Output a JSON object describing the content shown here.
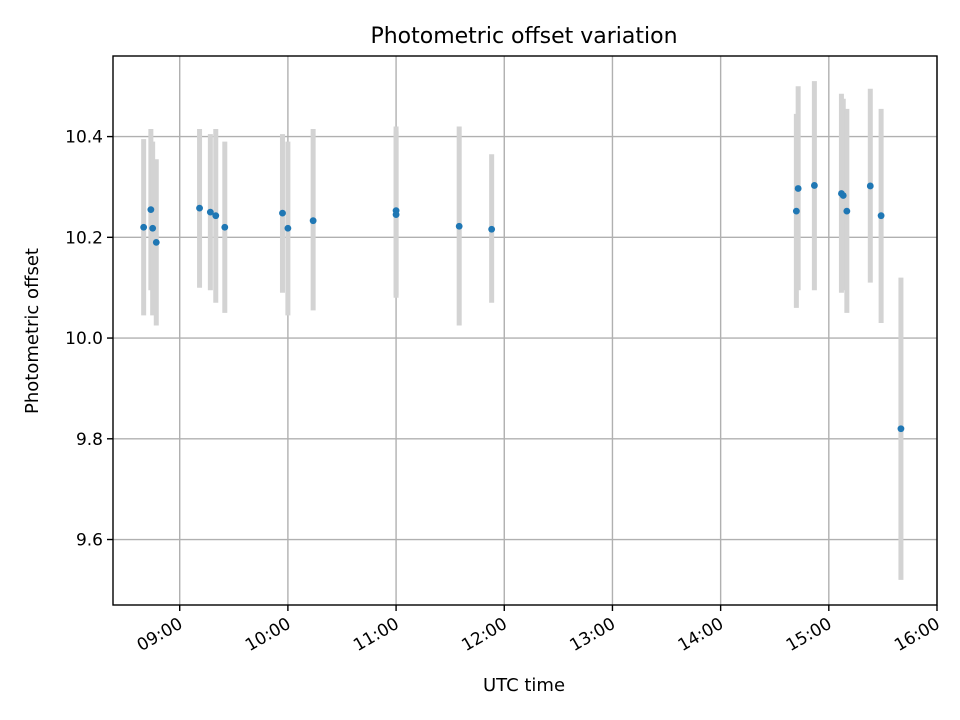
{
  "chart_data": {
    "type": "scatter",
    "title": "Photometric offset variation",
    "xlabel": "UTC time",
    "ylabel": "Photometric offset",
    "xlim": [
      "08:23",
      "16:00"
    ],
    "ylim": [
      9.47,
      10.56
    ],
    "grid": true,
    "x_ticks": [
      "09:00",
      "10:00",
      "11:00",
      "12:00",
      "13:00",
      "14:00",
      "15:00",
      "16:00"
    ],
    "y_ticks": [
      9.6,
      9.8,
      10.0,
      10.2,
      10.4
    ],
    "y_tick_labels": [
      "9.6",
      "9.8",
      "10.0",
      "10.2",
      "10.4"
    ],
    "colors": {
      "point": "#1f77b4",
      "errorbar": "#d3d3d3",
      "grid": "#b0b0b0"
    },
    "series": [
      {
        "points": [
          {
            "x": "08:40",
            "y": 10.22,
            "err_low": 10.045,
            "err_high": 10.395
          },
          {
            "x": "08:44",
            "y": 10.255,
            "err_low": 10.095,
            "err_high": 10.415
          },
          {
            "x": "08:45",
            "y": 10.218,
            "err_low": 10.045,
            "err_high": 10.39
          },
          {
            "x": "08:47",
            "y": 10.19,
            "err_low": 10.025,
            "err_high": 10.355
          },
          {
            "x": "09:11",
            "y": 10.258,
            "err_low": 10.1,
            "err_high": 10.415
          },
          {
            "x": "09:17",
            "y": 10.25,
            "err_low": 10.095,
            "err_high": 10.405
          },
          {
            "x": "09:20",
            "y": 10.243,
            "err_low": 10.07,
            "err_high": 10.415
          },
          {
            "x": "09:25",
            "y": 10.22,
            "err_low": 10.05,
            "err_high": 10.39
          },
          {
            "x": "09:57",
            "y": 10.248,
            "err_low": 10.09,
            "err_high": 10.405
          },
          {
            "x": "10:00",
            "y": 10.218,
            "err_low": 10.045,
            "err_high": 10.39
          },
          {
            "x": "10:14",
            "y": 10.233,
            "err_low": 10.055,
            "err_high": 10.415
          },
          {
            "x": "11:00",
            "y": 10.253,
            "err_low": 10.085,
            "err_high": 10.42
          },
          {
            "x": "11:00",
            "y": 10.245,
            "err_low": 10.08,
            "err_high": 10.41
          },
          {
            "x": "11:35",
            "y": 10.222,
            "err_low": 10.025,
            "err_high": 10.42
          },
          {
            "x": "11:53",
            "y": 10.216,
            "err_low": 10.07,
            "err_high": 10.365
          },
          {
            "x": "14:42",
            "y": 10.252,
            "err_low": 10.06,
            "err_high": 10.445
          },
          {
            "x": "14:43",
            "y": 10.297,
            "err_low": 10.095,
            "err_high": 10.5
          },
          {
            "x": "14:52",
            "y": 10.303,
            "err_low": 10.095,
            "err_high": 10.51
          },
          {
            "x": "15:07",
            "y": 10.287,
            "err_low": 10.09,
            "err_high": 10.485
          },
          {
            "x": "15:08",
            "y": 10.283,
            "err_low": 10.095,
            "err_high": 10.475
          },
          {
            "x": "15:10",
            "y": 10.252,
            "err_low": 10.05,
            "err_high": 10.455
          },
          {
            "x": "15:23",
            "y": 10.302,
            "err_low": 10.11,
            "err_high": 10.495
          },
          {
            "x": "15:29",
            "y": 10.243,
            "err_low": 10.03,
            "err_high": 10.455
          },
          {
            "x": "15:40",
            "y": 9.82,
            "err_low": 9.52,
            "err_high": 10.12
          }
        ]
      }
    ]
  }
}
